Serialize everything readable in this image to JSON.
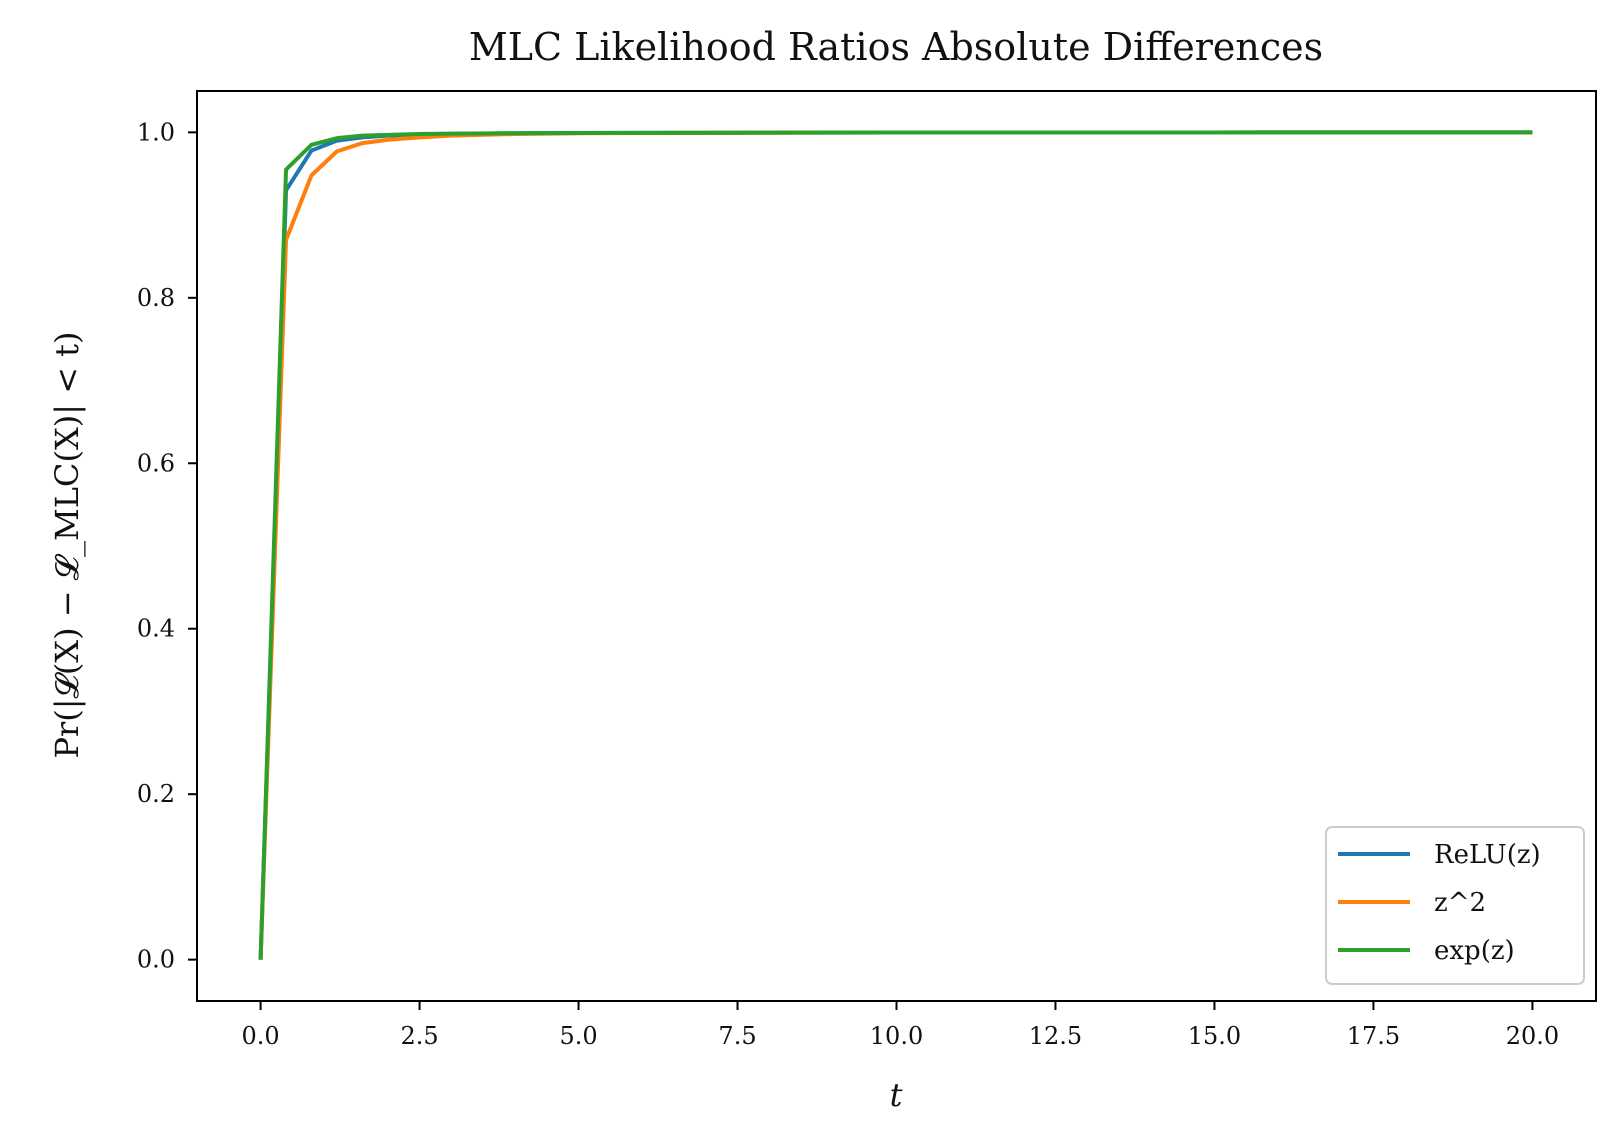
{
  "chart_data": {
    "type": "line",
    "title": "MLC Likelihood Ratios Absolute Differences",
    "xlabel": "t",
    "ylabel": "Pr(|𝓛(X) − 𝓛_MLC(X)| < t)",
    "xlim": [
      -1.0,
      21.0
    ],
    "ylim": [
      -0.05,
      1.05
    ],
    "x_ticks": [
      0.0,
      2.5,
      5.0,
      7.5,
      10.0,
      12.5,
      15.0,
      17.5,
      20.0
    ],
    "x_tick_labels": [
      "0.0",
      "2.5",
      "5.0",
      "7.5",
      "10.0",
      "12.5",
      "15.0",
      "17.5",
      "20.0"
    ],
    "y_ticks": [
      0.0,
      0.2,
      0.4,
      0.6,
      0.8,
      1.0
    ],
    "y_tick_labels": [
      "0.0",
      "0.2",
      "0.4",
      "0.6",
      "0.8",
      "1.0"
    ],
    "grid": false,
    "legend_position": "lower-right",
    "series": [
      {
        "name": "ReLU(z)",
        "color": "#1f77b4",
        "x": [
          0.0,
          0.4,
          0.8,
          1.2,
          1.6,
          2.0,
          2.5,
          3.0,
          4.0,
          5.0,
          7.5,
          10.0,
          15.0,
          20.0
        ],
        "y": [
          0.0,
          0.93,
          0.978,
          0.99,
          0.994,
          0.996,
          0.997,
          0.998,
          0.999,
          0.9993,
          0.9996,
          0.9998,
          0.9999,
          1.0
        ]
      },
      {
        "name": "z^2",
        "color": "#ff7f0e",
        "x": [
          0.0,
          0.4,
          0.8,
          1.2,
          1.6,
          2.0,
          2.5,
          3.0,
          4.0,
          5.0,
          7.5,
          10.0,
          15.0,
          20.0
        ],
        "y": [
          0.0,
          0.87,
          0.948,
          0.977,
          0.987,
          0.991,
          0.994,
          0.996,
          0.998,
          0.999,
          0.9995,
          0.9998,
          0.9999,
          1.0
        ]
      },
      {
        "name": "exp(z)",
        "color": "#2ca02c",
        "x": [
          0.0,
          0.4,
          0.8,
          1.2,
          1.6,
          2.0,
          2.5,
          3.0,
          4.0,
          5.0,
          7.5,
          10.0,
          15.0,
          20.0
        ],
        "y": [
          0.0,
          0.955,
          0.985,
          0.993,
          0.996,
          0.997,
          0.998,
          0.9985,
          0.999,
          0.9993,
          0.9996,
          0.9998,
          0.9999,
          1.0
        ]
      }
    ]
  }
}
